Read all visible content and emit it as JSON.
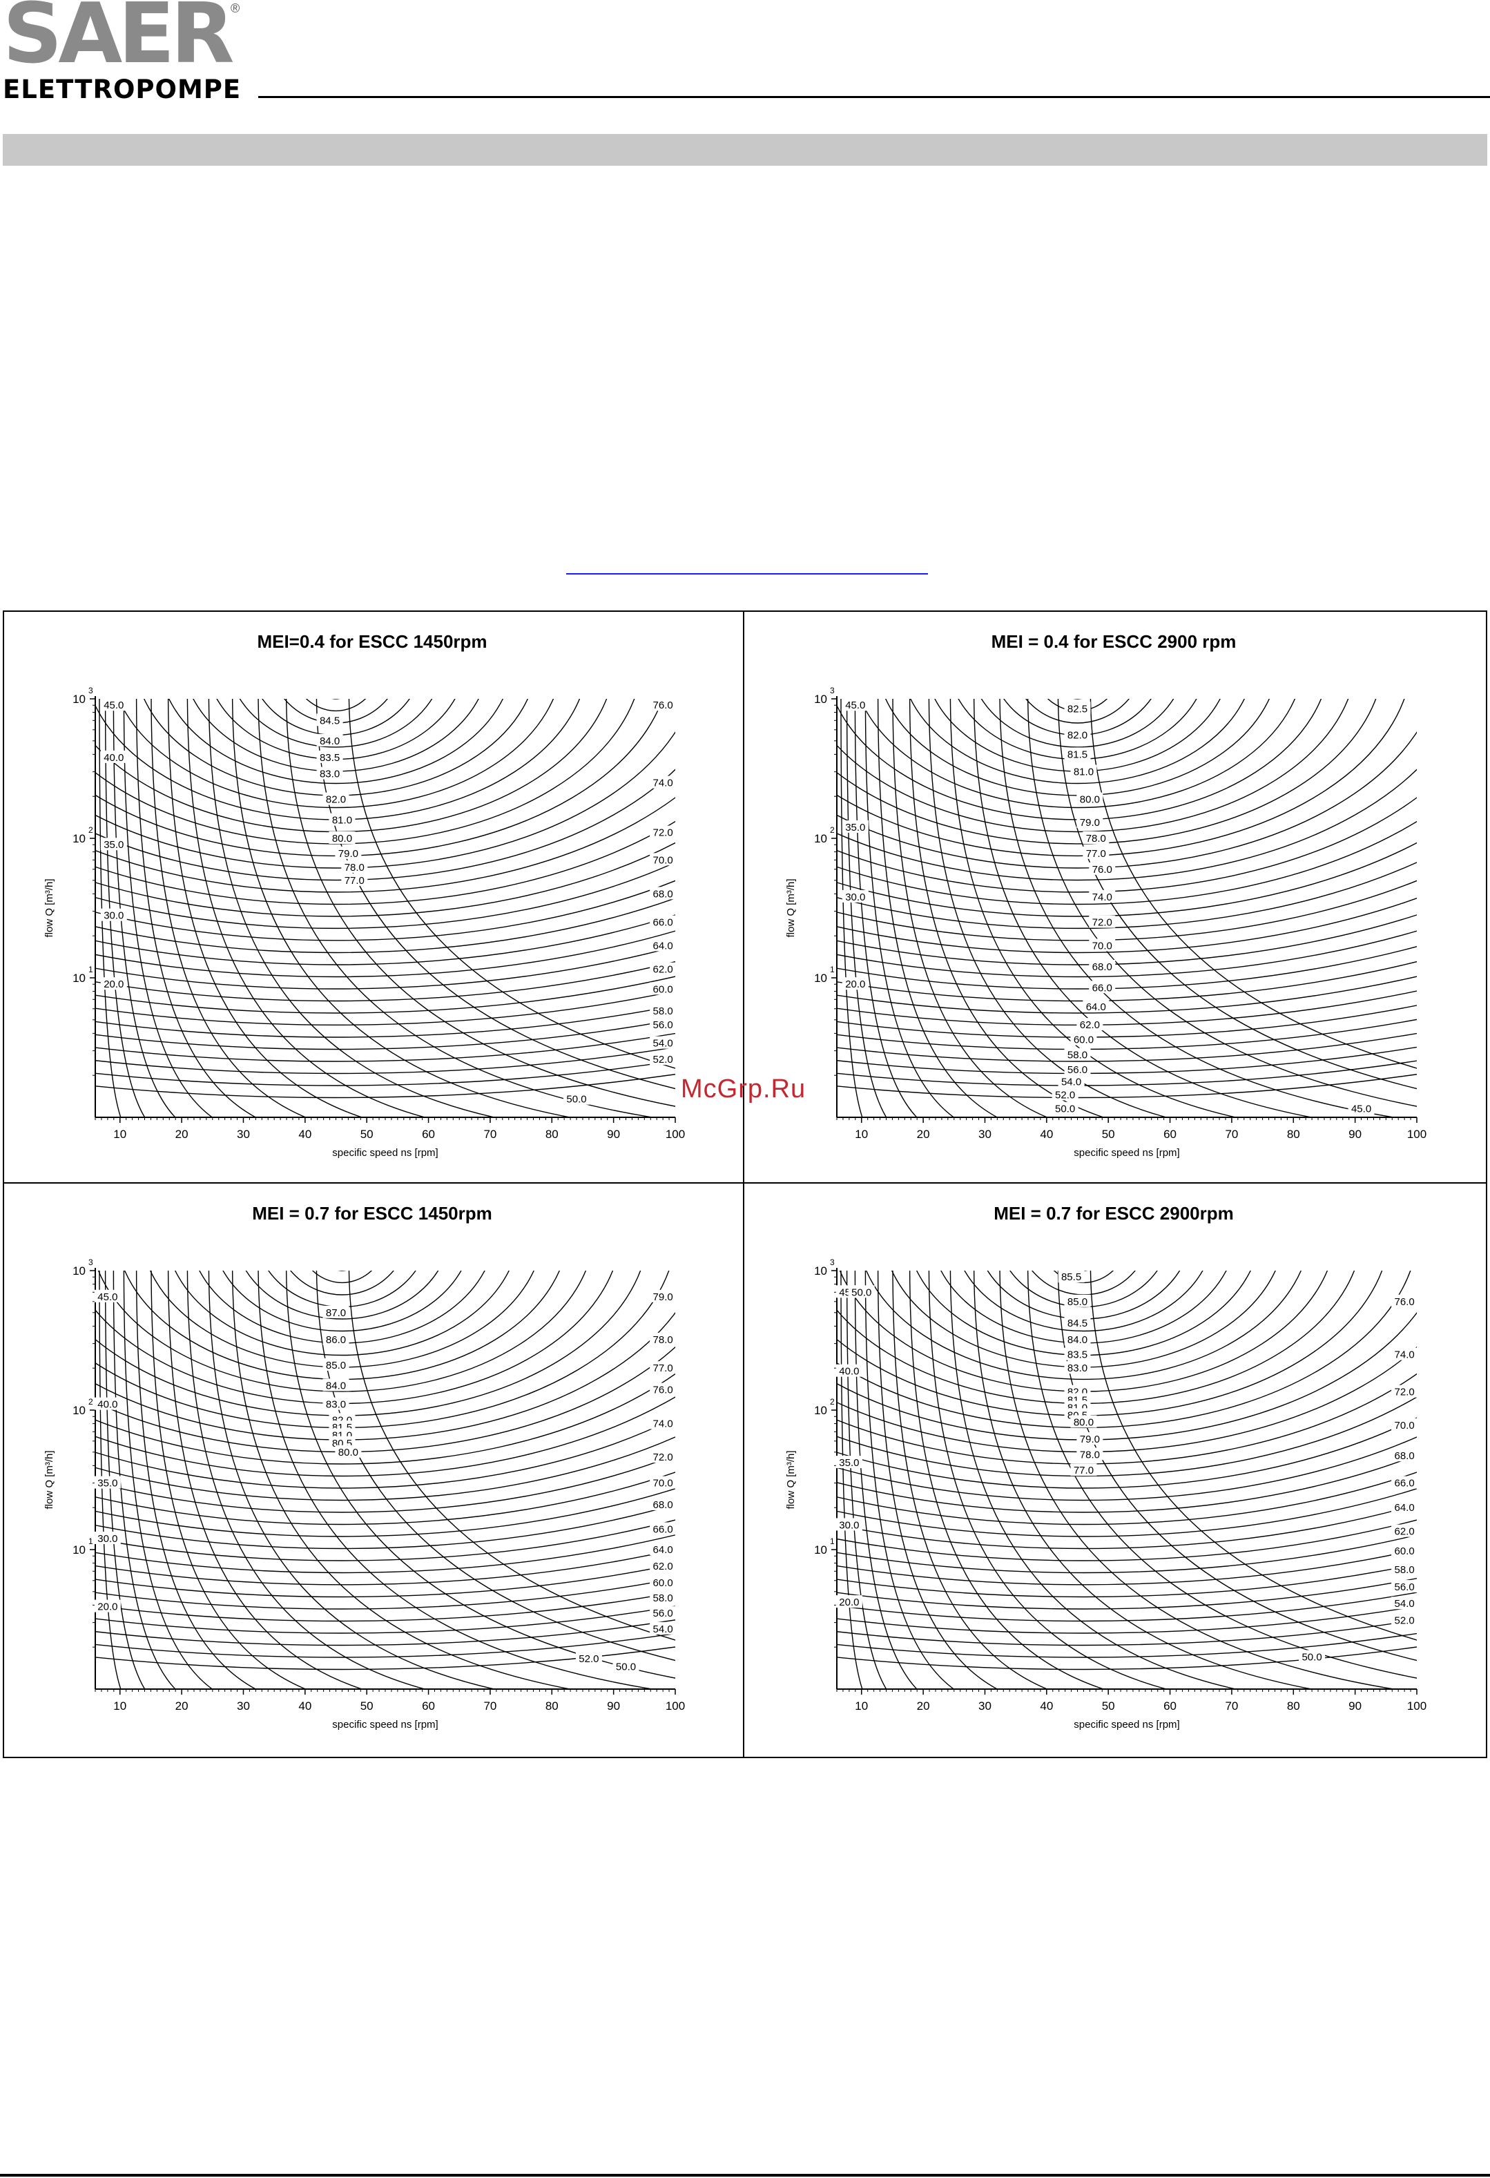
{
  "brand": {
    "name": "SAER",
    "registered": "®",
    "sub": "ELETTROPOMPE"
  },
  "watermark": "McGrp.Ru",
  "chart_data": [
    {
      "type": "contour",
      "title": "MEI=0.4 for ESCC 1450rpm",
      "xlabel": "specific speed ns [rpm]",
      "ylabel": "flow Q [m³/h]",
      "xlim": [
        6,
        100
      ],
      "xticks": [
        "10",
        "20",
        "30",
        "40",
        "50",
        "60",
        "70",
        "80",
        "90",
        "100"
      ],
      "y_log": true,
      "yticks": [
        {
          "base": "10",
          "exp": "1",
          "value": 10
        },
        {
          "base": "10",
          "exp": "2",
          "value": 100
        },
        {
          "base": "10",
          "exp": "3",
          "value": 1000
        }
      ],
      "center_ns": 45,
      "contour_labels": [
        {
          "text": "84.5",
          "x": 44,
          "q": 700
        },
        {
          "text": "84.0",
          "x": 44,
          "q": 500
        },
        {
          "text": "83.5",
          "x": 44,
          "q": 380
        },
        {
          "text": "83.0",
          "x": 44,
          "q": 290
        },
        {
          "text": "82.0",
          "x": 45,
          "q": 190
        },
        {
          "text": "81.0",
          "x": 46,
          "q": 135
        },
        {
          "text": "80.0",
          "x": 46,
          "q": 100
        },
        {
          "text": "79.0",
          "x": 47,
          "q": 78
        },
        {
          "text": "78.0",
          "x": 48,
          "q": 62
        },
        {
          "text": "77.0",
          "x": 48,
          "q": 50
        },
        {
          "text": "76.0",
          "x": 98,
          "q": 900
        },
        {
          "text": "74.0",
          "x": 98,
          "q": 250
        },
        {
          "text": "72.0",
          "x": 98,
          "q": 110
        },
        {
          "text": "70.0",
          "x": 98,
          "q": 70
        },
        {
          "text": "68.0",
          "x": 98,
          "q": 40
        },
        {
          "text": "66.0",
          "x": 98,
          "q": 25
        },
        {
          "text": "64.0",
          "x": 98,
          "q": 17
        },
        {
          "text": "62.0",
          "x": 98,
          "q": 11.5
        },
        {
          "text": "60.0",
          "x": 98,
          "q": 8.3
        },
        {
          "text": "58.0",
          "x": 98,
          "q": 5.8
        },
        {
          "text": "56.0",
          "x": 98,
          "q": 4.6
        },
        {
          "text": "54.0",
          "x": 98,
          "q": 3.4
        },
        {
          "text": "52.0",
          "x": 98,
          "q": 2.6
        },
        {
          "text": "50.0",
          "x": 84,
          "q": 1.35
        },
        {
          "text": "45.0",
          "x": 9,
          "q": 900
        },
        {
          "text": "40.0",
          "x": 9,
          "q": 380
        },
        {
          "text": "35.0",
          "x": 9,
          "q": 90
        },
        {
          "text": "30.0",
          "x": 9,
          "q": 28
        },
        {
          "text": "20.0",
          "x": 9,
          "q": 9
        }
      ]
    },
    {
      "type": "contour",
      "title": "MEI = 0.4 for ESCC 2900 rpm",
      "xlabel": "specific speed ns [rpm]",
      "ylabel": "flow Q [m³/h]",
      "xlim": [
        6,
        100
      ],
      "xticks": [
        "10",
        "20",
        "30",
        "40",
        "50",
        "60",
        "70",
        "80",
        "90",
        "100"
      ],
      "y_log": true,
      "yticks": [
        {
          "base": "10",
          "exp": "1",
          "value": 10
        },
        {
          "base": "10",
          "exp": "2",
          "value": 100
        },
        {
          "base": "10",
          "exp": "3",
          "value": 1000
        }
      ],
      "center_ns": 45,
      "contour_labels": [
        {
          "text": "82.5",
          "x": 45,
          "q": 850
        },
        {
          "text": "82.0",
          "x": 45,
          "q": 550
        },
        {
          "text": "81.5",
          "x": 45,
          "q": 400
        },
        {
          "text": "81.0",
          "x": 46,
          "q": 300
        },
        {
          "text": "80.0",
          "x": 47,
          "q": 190
        },
        {
          "text": "79.0",
          "x": 47,
          "q": 130
        },
        {
          "text": "78.0",
          "x": 48,
          "q": 100
        },
        {
          "text": "77.0",
          "x": 48,
          "q": 78
        },
        {
          "text": "76.0",
          "x": 49,
          "q": 60
        },
        {
          "text": "74.0",
          "x": 49,
          "q": 38
        },
        {
          "text": "72.0",
          "x": 49,
          "q": 25
        },
        {
          "text": "70.0",
          "x": 49,
          "q": 17
        },
        {
          "text": "68.0",
          "x": 49,
          "q": 12
        },
        {
          "text": "66.0",
          "x": 49,
          "q": 8.5
        },
        {
          "text": "64.0",
          "x": 48,
          "q": 6.2
        },
        {
          "text": "62.0",
          "x": 47,
          "q": 4.6
        },
        {
          "text": "60.0",
          "x": 46,
          "q": 3.6
        },
        {
          "text": "58.0",
          "x": 45,
          "q": 2.8
        },
        {
          "text": "56.0",
          "x": 45,
          "q": 2.2
        },
        {
          "text": "54.0",
          "x": 44,
          "q": 1.8
        },
        {
          "text": "52.0",
          "x": 43,
          "q": 1.45
        },
        {
          "text": "50.0",
          "x": 43,
          "q": 1.15
        },
        {
          "text": "45.0",
          "x": 91,
          "q": 1.15
        },
        {
          "text": "45.0",
          "x": 9,
          "q": 900
        },
        {
          "text": "35.0",
          "x": 9,
          "q": 120
        },
        {
          "text": "30.0",
          "x": 9,
          "q": 38
        },
        {
          "text": "20.0",
          "x": 9,
          "q": 9
        }
      ]
    },
    {
      "type": "contour",
      "title": "MEI = 0.7 for ESCC 1450rpm",
      "xlabel": "specific speed ns [rpm]",
      "ylabel": "flow Q [m³/h]",
      "xlim": [
        6,
        100
      ],
      "xticks": [
        "10",
        "20",
        "30",
        "40",
        "50",
        "60",
        "70",
        "80",
        "90",
        "100"
      ],
      "y_log": true,
      "yticks": [
        {
          "base": "10",
          "exp": "1",
          "value": 10
        },
        {
          "base": "10",
          "exp": "2",
          "value": 100
        },
        {
          "base": "10",
          "exp": "3",
          "value": 1000
        }
      ],
      "center_ns": 46,
      "contour_labels": [
        {
          "text": "87.0",
          "x": 45,
          "q": 500
        },
        {
          "text": "86.0",
          "x": 45,
          "q": 320
        },
        {
          "text": "85.0",
          "x": 45,
          "q": 210
        },
        {
          "text": "84.0",
          "x": 45,
          "q": 150
        },
        {
          "text": "83.0",
          "x": 45,
          "q": 110
        },
        {
          "text": "82.0",
          "x": 46,
          "q": 85
        },
        {
          "text": "81.5",
          "x": 46,
          "q": 75
        },
        {
          "text": "81.0",
          "x": 46,
          "q": 66
        },
        {
          "text": "80.5",
          "x": 46,
          "q": 58
        },
        {
          "text": "80.0",
          "x": 47,
          "q": 50
        },
        {
          "text": "79.0",
          "x": 98,
          "q": 650
        },
        {
          "text": "78.0",
          "x": 98,
          "q": 320
        },
        {
          "text": "77.0",
          "x": 98,
          "q": 200
        },
        {
          "text": "76.0",
          "x": 98,
          "q": 140
        },
        {
          "text": "74.0",
          "x": 98,
          "q": 80
        },
        {
          "text": "72.0",
          "x": 98,
          "q": 46
        },
        {
          "text": "70.0",
          "x": 98,
          "q": 30
        },
        {
          "text": "68.0",
          "x": 98,
          "q": 21
        },
        {
          "text": "66.0",
          "x": 98,
          "q": 14
        },
        {
          "text": "64.0",
          "x": 98,
          "q": 10
        },
        {
          "text": "62.0",
          "x": 98,
          "q": 7.6
        },
        {
          "text": "60.0",
          "x": 98,
          "q": 5.8
        },
        {
          "text": "58.0",
          "x": 98,
          "q": 4.5
        },
        {
          "text": "56.0",
          "x": 98,
          "q": 3.5
        },
        {
          "text": "54.0",
          "x": 98,
          "q": 2.7
        },
        {
          "text": "52.0",
          "x": 86,
          "q": 1.65
        },
        {
          "text": "50.0",
          "x": 92,
          "q": 1.45
        },
        {
          "text": "45.0",
          "x": 8,
          "q": 650
        },
        {
          "text": "40.0",
          "x": 8,
          "q": 110
        },
        {
          "text": "35.0",
          "x": 8,
          "q": 30
        },
        {
          "text": "30.0",
          "x": 8,
          "q": 12
        },
        {
          "text": "20.0",
          "x": 8,
          "q": 3.9
        }
      ]
    },
    {
      "type": "contour",
      "title": "MEI = 0.7 for ESCC 2900rpm",
      "xlabel": "specific speed ns [rpm]",
      "ylabel": "flow Q [m³/h]",
      "xlim": [
        6,
        100
      ],
      "xticks": [
        "10",
        "20",
        "30",
        "40",
        "50",
        "60",
        "70",
        "80",
        "90",
        "100"
      ],
      "y_log": true,
      "yticks": [
        {
          "base": "10",
          "exp": "1",
          "value": 10
        },
        {
          "base": "10",
          "exp": "2",
          "value": 100
        },
        {
          "base": "10",
          "exp": "3",
          "value": 1000
        }
      ],
      "center_ns": 46,
      "contour_labels": [
        {
          "text": "85.5",
          "x": 44,
          "q": 900
        },
        {
          "text": "85.0",
          "x": 45,
          "q": 600
        },
        {
          "text": "84.5",
          "x": 45,
          "q": 420
        },
        {
          "text": "84.0",
          "x": 45,
          "q": 320
        },
        {
          "text": "83.5",
          "x": 45,
          "q": 250
        },
        {
          "text": "83.0",
          "x": 45,
          "q": 200
        },
        {
          "text": "82.0",
          "x": 45,
          "q": 135
        },
        {
          "text": "81.5",
          "x": 45,
          "q": 118
        },
        {
          "text": "81.0",
          "x": 45,
          "q": 104
        },
        {
          "text": "80.5",
          "x": 45,
          "q": 92
        },
        {
          "text": "80.0",
          "x": 46,
          "q": 82
        },
        {
          "text": "79.0",
          "x": 47,
          "q": 62
        },
        {
          "text": "78.0",
          "x": 47,
          "q": 48
        },
        {
          "text": "77.0",
          "x": 46,
          "q": 37
        },
        {
          "text": "76.0",
          "x": 98,
          "q": 600
        },
        {
          "text": "74.0",
          "x": 98,
          "q": 250
        },
        {
          "text": "72.0",
          "x": 98,
          "q": 135
        },
        {
          "text": "70.0",
          "x": 98,
          "q": 78
        },
        {
          "text": "68.0",
          "x": 98,
          "q": 47
        },
        {
          "text": "66.0",
          "x": 98,
          "q": 30
        },
        {
          "text": "64.0",
          "x": 98,
          "q": 20
        },
        {
          "text": "62.0",
          "x": 98,
          "q": 13.5
        },
        {
          "text": "60.0",
          "x": 98,
          "q": 9.8
        },
        {
          "text": "58.0",
          "x": 98,
          "q": 7.2
        },
        {
          "text": "56.0",
          "x": 98,
          "q": 5.4
        },
        {
          "text": "54.0",
          "x": 98,
          "q": 4.1
        },
        {
          "text": "52.0",
          "x": 98,
          "q": 3.1
        },
        {
          "text": "50.0",
          "x": 83,
          "q": 1.7
        },
        {
          "text": "45.0",
          "x": 8,
          "q": 700
        },
        {
          "text": "50.0",
          "x": 10,
          "q": 700
        },
        {
          "text": "40.0",
          "x": 8,
          "q": 190
        },
        {
          "text": "35.0",
          "x": 8,
          "q": 42
        },
        {
          "text": "30.0",
          "x": 8,
          "q": 15
        },
        {
          "text": "20.0",
          "x": 8,
          "q": 4.2
        }
      ]
    }
  ]
}
